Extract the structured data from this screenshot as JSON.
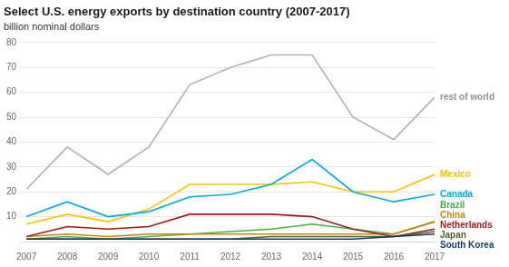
{
  "chart_data": {
    "type": "line",
    "title": "Select U.S. energy exports by destination country (2007-2017)",
    "subtitle": "billion nominal dollars",
    "x": [
      2007,
      2008,
      2009,
      2010,
      2011,
      2012,
      2013,
      2014,
      2015,
      2016,
      2017
    ],
    "series": [
      {
        "name": "rest of world",
        "color": "#b0b0b0",
        "values": [
          21,
          38,
          27,
          38,
          63,
          70,
          75,
          75,
          50,
          41,
          58
        ]
      },
      {
        "name": "South Korea",
        "color": "#17375e",
        "values": [
          1,
          1,
          1,
          1,
          1,
          1,
          1,
          1,
          1,
          2,
          3
        ]
      },
      {
        "name": "Japan",
        "color": "#4f6228",
        "values": [
          1,
          1,
          1,
          1,
          1,
          1,
          2,
          2,
          2,
          2,
          4
        ]
      },
      {
        "name": "Netherlands",
        "color": "#9e1a1a",
        "values": [
          2,
          6,
          5,
          6,
          11,
          11,
          11,
          10,
          5,
          2,
          5
        ]
      },
      {
        "name": "China",
        "color": "#c8860a",
        "values": [
          2,
          3,
          2,
          3,
          3,
          3,
          3,
          3,
          3,
          3,
          8
        ]
      },
      {
        "name": "Brazil",
        "color": "#4daf4a",
        "values": [
          1,
          2,
          1,
          2,
          3,
          4,
          5,
          7,
          5,
          3,
          8
        ]
      },
      {
        "name": "Canada",
        "color": "#00aae4",
        "values": [
          10,
          16,
          10,
          12,
          18,
          19,
          23,
          33,
          20,
          16,
          19
        ]
      },
      {
        "name": "Mexico",
        "color": "#f5c200",
        "values": [
          7,
          11,
          8,
          13,
          23,
          23,
          23,
          24,
          20,
          20,
          27
        ]
      }
    ],
    "annotations": [
      {
        "text": "rest of world",
        "color": "#909090"
      },
      {
        "text": "Mexico",
        "color": "#f5c200"
      },
      {
        "text": "Canada",
        "color": "#00aae4"
      },
      {
        "text": "Brazil",
        "color": "#4daf4a"
      },
      {
        "text": "China",
        "color": "#c8860a"
      },
      {
        "text": "Netherlands",
        "color": "#9e1a1a"
      },
      {
        "text": "Japan",
        "color": "#4f6228"
      },
      {
        "text": "South Korea",
        "color": "#17375e"
      }
    ],
    "xlim": [
      2007,
      2017
    ],
    "xticks": [
      2007,
      2008,
      2009,
      2010,
      2011,
      2012,
      2013,
      2014,
      2015,
      2016,
      2017
    ],
    "ylim": [
      0,
      80
    ],
    "yticks": [
      {
        "value": 0,
        "label": null
      },
      10,
      20,
      30,
      40,
      50,
      60,
      70,
      80
    ],
    "grid": "y"
  }
}
